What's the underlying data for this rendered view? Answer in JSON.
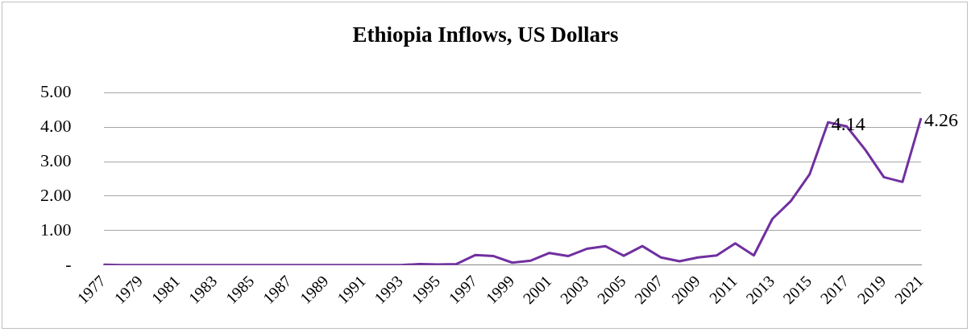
{
  "chart_data": {
    "type": "line",
    "title": "Ethiopia Inflows, US Dollars",
    "categories": [
      "1977",
      null,
      "1979",
      null,
      "1981",
      null,
      "1983",
      null,
      "1985",
      null,
      "1987",
      null,
      "1989",
      null,
      "1991",
      null,
      "1993",
      null,
      "1995",
      null,
      "1997",
      null,
      "1999",
      null,
      "2001",
      null,
      "2003",
      null,
      "2005",
      null,
      "2007",
      null,
      "2009",
      null,
      "2011",
      null,
      "2013",
      null,
      "2015",
      null,
      "2017",
      null,
      "2019",
      null,
      "2021"
    ],
    "series": [
      {
        "color": "#7030a0",
        "values": [
          0.01,
          0,
          0,
          0,
          0,
          0,
          0,
          0,
          0,
          0,
          0,
          0,
          0,
          0,
          0,
          0,
          0,
          0.03,
          0.02,
          0.03,
          0.29,
          0.26,
          0.07,
          0.13,
          0.35,
          0.26,
          0.47,
          0.55,
          0.27,
          0.55,
          0.22,
          0.11,
          0.22,
          0.28,
          0.63,
          0.28,
          1.34,
          1.86,
          2.63,
          4.14,
          4.02,
          3.34,
          2.55,
          2.41,
          4.26
        ],
        "value_labels": [
          null,
          null,
          null,
          null,
          null,
          null,
          null,
          null,
          null,
          null,
          null,
          null,
          null,
          null,
          null,
          null,
          null,
          null,
          null,
          null,
          null,
          null,
          null,
          null,
          null,
          null,
          null,
          null,
          null,
          null,
          null,
          null,
          null,
          null,
          null,
          null,
          null,
          null,
          null,
          "4.14",
          null,
          null,
          null,
          null,
          "4.26"
        ]
      }
    ],
    "ylim": [
      0,
      5
    ],
    "yticks": [
      {
        "value": 0,
        "label": "-"
      },
      {
        "value": 1,
        "label": "1.00"
      },
      {
        "value": 2,
        "label": "2.00"
      },
      {
        "value": 3,
        "label": "3.00"
      },
      {
        "value": 4,
        "label": "4.00"
      },
      {
        "value": 5,
        "label": "5.00"
      }
    ],
    "grid": "y",
    "legend": false,
    "marker": "none",
    "line_style": "solid"
  }
}
